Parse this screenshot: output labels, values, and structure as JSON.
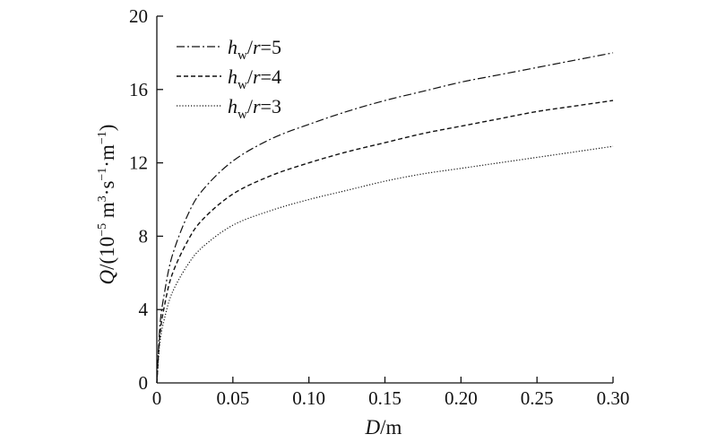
{
  "chart_data": {
    "type": "line",
    "title": "",
    "xlabel": {
      "main": "D",
      "unit": "/m"
    },
    "ylabel": {
      "main": "Q",
      "unit": "/(10",
      "exp1": "−5",
      "mid1": " m",
      "exp2": "3",
      "mid2": "·s",
      "exp3": "−1",
      "mid3": "·m",
      "exp4": "−1",
      "end": ")"
    },
    "xlim": [
      0,
      0.3
    ],
    "ylim": [
      0,
      20
    ],
    "xticks": [
      "0",
      "0.05",
      "0.10",
      "0.15",
      "0.20",
      "0.25",
      "0.30"
    ],
    "yticks": [
      "0",
      "4",
      "8",
      "12",
      "16",
      "20"
    ],
    "grid": false,
    "legend_position": "top-left",
    "x": [
      0,
      0.002,
      0.005,
      0.01,
      0.02,
      0.03,
      0.05,
      0.075,
      0.1,
      0.125,
      0.15,
      0.175,
      0.2,
      0.225,
      0.25,
      0.275,
      0.3
    ],
    "series": [
      {
        "name_parts": {
          "h": "h",
          "sub": "w",
          "slash": "/",
          "r": "r",
          "value": "=5"
        },
        "style": "dashdot",
        "values": [
          0,
          3.1,
          4.9,
          6.9,
          9.1,
          10.5,
          12.1,
          13.3,
          14.1,
          14.8,
          15.4,
          15.9,
          16.4,
          16.8,
          17.2,
          17.6,
          18.0
        ]
      },
      {
        "name_parts": {
          "h": "h",
          "sub": "w",
          "slash": "/",
          "r": "r",
          "value": "=4"
        },
        "style": "dashed",
        "values": [
          0,
          2.6,
          4.2,
          5.9,
          7.7,
          8.9,
          10.3,
          11.3,
          12.0,
          12.6,
          13.1,
          13.6,
          14.0,
          14.4,
          14.8,
          15.1,
          15.4
        ]
      },
      {
        "name_parts": {
          "h": "h",
          "sub": "w",
          "slash": "/",
          "r": "r",
          "value": "=3"
        },
        "style": "dotted",
        "values": [
          0,
          2.2,
          3.5,
          4.9,
          6.4,
          7.4,
          8.6,
          9.4,
          10.0,
          10.5,
          11.0,
          11.4,
          11.7,
          12.0,
          12.3,
          12.6,
          12.9
        ]
      }
    ]
  }
}
